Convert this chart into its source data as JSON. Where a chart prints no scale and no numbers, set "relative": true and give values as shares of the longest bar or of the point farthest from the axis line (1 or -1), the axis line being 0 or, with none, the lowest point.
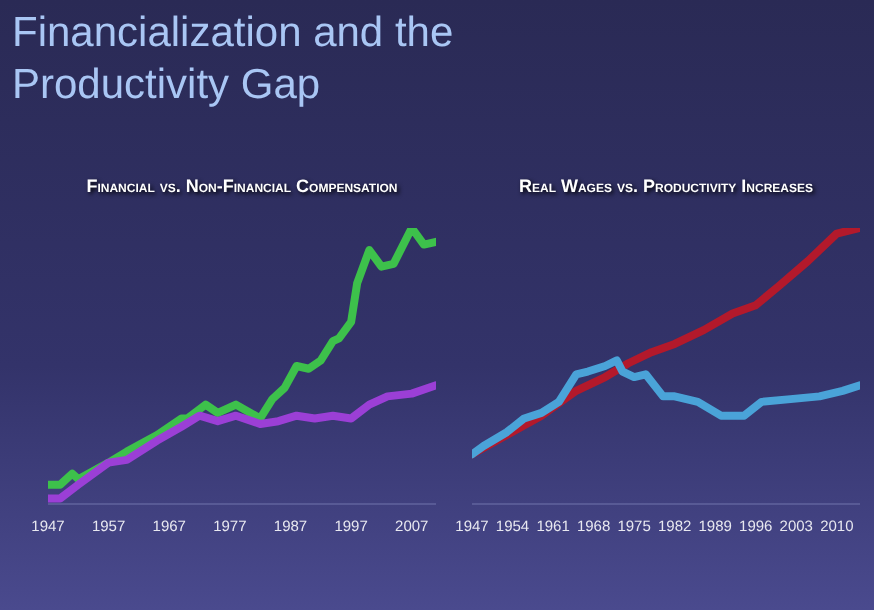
{
  "chart_data": [
    {
      "type": "other",
      "title": "Financialization and the Productivity Gap"
    },
    {
      "type": "line",
      "title": "Financial vs. Non-Financial Compensation",
      "relative": true,
      "xlim": [
        1947,
        2011
      ],
      "xticks": [
        1947,
        1957,
        1967,
        1977,
        1987,
        1997,
        2007
      ],
      "series": [
        {
          "color": "#3dc14b",
          "x": [
            1947,
            1949,
            1951,
            1952,
            1957,
            1960,
            1965,
            1969,
            1970,
            1973,
            1975,
            1978,
            1982,
            1984,
            1986,
            1988,
            1990,
            1992,
            1994,
            1995,
            1997,
            1998,
            2000,
            2002,
            2004,
            2007,
            2009,
            2011
          ],
          "values": [
            0.07,
            0.07,
            0.11,
            0.09,
            0.15,
            0.19,
            0.25,
            0.31,
            0.31,
            0.36,
            0.33,
            0.36,
            0.31,
            0.38,
            0.42,
            0.5,
            0.49,
            0.52,
            0.59,
            0.6,
            0.66,
            0.8,
            0.92,
            0.86,
            0.87,
            1,
            0.94,
            0.95
          ]
        },
        {
          "color": "#9b3fd6",
          "x": [
            1947,
            1949,
            1952,
            1957,
            1960,
            1965,
            1969,
            1972,
            1975,
            1978,
            1982,
            1985,
            1988,
            1991,
            1994,
            1997,
            2000,
            2003,
            2007,
            2011
          ],
          "values": [
            0.02,
            0.02,
            0.07,
            0.15,
            0.16,
            0.23,
            0.28,
            0.32,
            0.3,
            0.32,
            0.29,
            0.3,
            0.32,
            0.31,
            0.32,
            0.31,
            0.36,
            0.39,
            0.4,
            0.43
          ]
        }
      ]
    },
    {
      "type": "line",
      "title": "Real Wages vs. Productivity Increases",
      "relative": true,
      "xlim": [
        1947,
        2014
      ],
      "xticks": [
        1947,
        1954,
        1961,
        1968,
        1975,
        1982,
        1989,
        1996,
        2003,
        2010
      ],
      "series": [
        {
          "color": "#b3192b",
          "x": [
            1947,
            1953,
            1959,
            1965,
            1970,
            1974,
            1978,
            1982,
            1987,
            1992,
            1996,
            2000,
            2005,
            2010,
            2014
          ],
          "values": [
            0.18,
            0.25,
            0.32,
            0.41,
            0.46,
            0.51,
            0.55,
            0.58,
            0.63,
            0.69,
            0.72,
            0.79,
            0.88,
            0.98,
            1
          ]
        },
        {
          "color": "#4aa3d8",
          "x": [
            1947,
            1949,
            1953,
            1956,
            1959,
            1962,
            1965,
            1967,
            1970,
            1972,
            1973,
            1975,
            1977,
            1980,
            1982,
            1986,
            1990,
            1994,
            1997,
            2002,
            2007,
            2011,
            2014
          ],
          "values": [
            0.18,
            0.21,
            0.26,
            0.31,
            0.33,
            0.37,
            0.47,
            0.48,
            0.5,
            0.52,
            0.48,
            0.46,
            0.47,
            0.39,
            0.39,
            0.37,
            0.32,
            0.32,
            0.37,
            0.38,
            0.39,
            0.41,
            0.43
          ]
        }
      ]
    }
  ]
}
